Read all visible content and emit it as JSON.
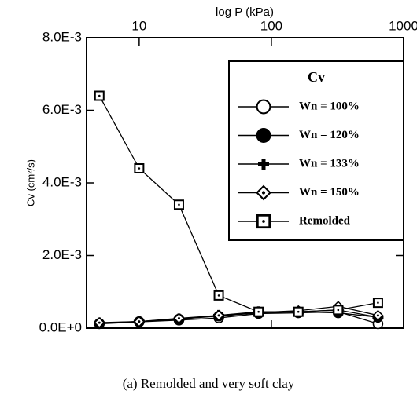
{
  "chart_data": {
    "type": "line",
    "x_label": "log P (kPa)",
    "y_label": "Cv (cm²/s)",
    "caption": "(a) Remolded and very soft clay",
    "legend_title": "Cv",
    "legend": "upper right",
    "x_scale": "log",
    "xlim": [
      4,
      1000
    ],
    "xticks": [
      10,
      100,
      1000
    ],
    "ylim": [
      0,
      0.008
    ],
    "yticks": [
      {
        "value": 0,
        "label": "0.0E+0"
      },
      {
        "value": 0.002,
        "label": "2.0E-3"
      },
      {
        "value": 0.004,
        "label": "4.0E-3"
      },
      {
        "value": 0.006,
        "label": "6.0E-3"
      },
      {
        "value": 0.008,
        "label": "8.0E-3"
      }
    ],
    "x": [
      5,
      10,
      20,
      40,
      80,
      160,
      320,
      640
    ],
    "series": [
      {
        "name": "Wn = 100%",
        "color": "#000000",
        "marker": "circle-open",
        "values": [
          0.00012,
          0.00017,
          0.00022,
          0.00028,
          0.0004,
          0.00042,
          0.00045,
          0.00012
        ]
      },
      {
        "name": "Wn = 120%",
        "color": "#000000",
        "marker": "circle-filled",
        "values": [
          0.00013,
          0.00018,
          0.00025,
          0.00033,
          0.00042,
          0.00045,
          0.00042,
          0.0003
        ]
      },
      {
        "name": "Wn = 133%",
        "color": "#000000",
        "marker": "plus",
        "values": [
          0.00014,
          0.00018,
          0.00025,
          0.00035,
          0.00045,
          0.00045,
          0.0005,
          0.0003
        ]
      },
      {
        "name": "Wn = 150%",
        "color": "#000000",
        "marker": "diamond",
        "values": [
          0.00015,
          0.00018,
          0.00027,
          0.00035,
          0.00043,
          0.00048,
          0.0006,
          0.00035
        ]
      },
      {
        "name": "Remolded",
        "color": "#000000",
        "marker": "square",
        "values": [
          0.0064,
          0.0044,
          0.0034,
          0.0009,
          0.00045,
          0.00045,
          0.0005,
          0.0007
        ]
      }
    ]
  }
}
